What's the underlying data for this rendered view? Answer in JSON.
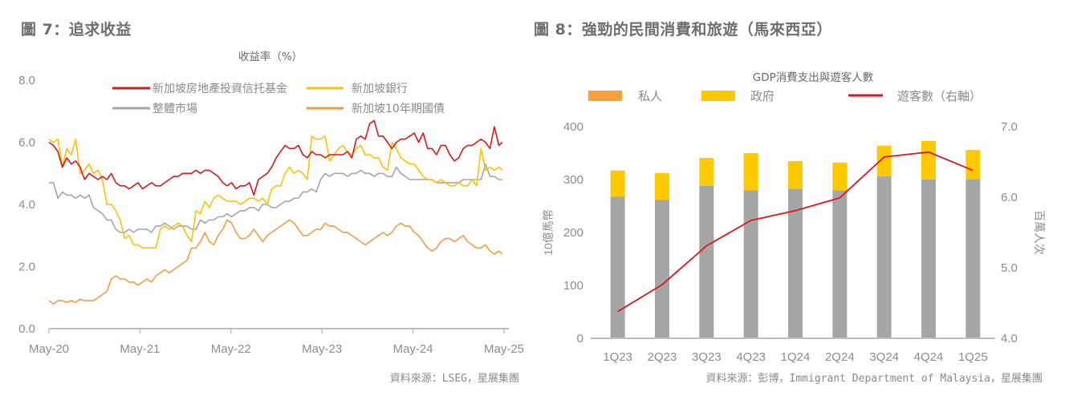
{
  "figures": [
    {
      "title": "圖 7：追求收益",
      "source": "資料來源：LSEG，星展集團"
    },
    {
      "title": "圖 8：強勁的民間消費和旅遊（馬來西亞）",
      "source": "資料來源：彭博，Immigrant Department of Malaysia，星展集團"
    }
  ],
  "chart_data": [
    {
      "type": "line",
      "title": "收益率（%）",
      "xlabel": "",
      "ylabel": "",
      "ylim": [
        0,
        8
      ],
      "yticks": [
        "0.0",
        "2.0",
        "4.0",
        "6.0",
        "8.0"
      ],
      "xticks": [
        "May-20",
        "May-21",
        "May-22",
        "May-23",
        "May-24",
        "May-25"
      ],
      "xlim": [
        2020.33,
        2025.42
      ],
      "grid": false,
      "legend": "top-center",
      "series": [
        {
          "name": "新加坡房地產投資信托基金",
          "color": "#d7191c",
          "x": [
            2020.33,
            2020.38,
            2020.43,
            2020.48,
            2020.53,
            2020.58,
            2020.63,
            2020.68,
            2020.73,
            2020.78,
            2020.83,
            2020.88,
            2020.93,
            2020.98,
            2021.03,
            2021.08,
            2021.13,
            2021.18,
            2021.23,
            2021.28,
            2021.33,
            2021.38,
            2021.43,
            2021.48,
            2021.53,
            2021.58,
            2021.63,
            2021.68,
            2021.73,
            2021.78,
            2021.83,
            2021.88,
            2021.93,
            2021.98,
            2022.03,
            2022.08,
            2022.13,
            2022.18,
            2022.23,
            2022.28,
            2022.33,
            2022.38,
            2022.43,
            2022.48,
            2022.53,
            2022.58,
            2022.63,
            2022.68,
            2022.73,
            2022.78,
            2022.83,
            2022.88,
            2022.93,
            2022.98,
            2023.03,
            2023.08,
            2023.13,
            2023.18,
            2023.23,
            2023.28,
            2023.33,
            2023.38,
            2023.43,
            2023.48,
            2023.53,
            2023.58,
            2023.63,
            2023.68,
            2023.73,
            2023.78,
            2023.83,
            2023.88,
            2023.93,
            2023.98,
            2024.03,
            2024.08,
            2024.13,
            2024.18,
            2024.23,
            2024.28,
            2024.33,
            2024.38,
            2024.43,
            2024.48,
            2024.53,
            2024.58,
            2024.63,
            2024.68,
            2024.73,
            2024.78,
            2024.83,
            2024.88,
            2024.93,
            2024.98,
            2025.03,
            2025.08,
            2025.13,
            2025.18,
            2025.23,
            2025.28,
            2025.33,
            2025.38,
            2025.42
          ],
          "values": [
            6.0,
            5.9,
            5.7,
            5.2,
            5.5,
            5.3,
            5.4,
            5.2,
            4.8,
            5.0,
            4.9,
            4.8,
            4.9,
            4.8,
            5.0,
            4.7,
            4.6,
            4.6,
            4.5,
            4.6,
            4.7,
            4.5,
            4.6,
            4.7,
            4.6,
            4.6,
            4.7,
            4.8,
            4.9,
            4.9,
            5.0,
            5.0,
            5.0,
            5.1,
            5.0,
            5.1,
            5.1,
            5.0,
            4.9,
            4.7,
            4.6,
            4.7,
            4.5,
            4.6,
            4.6,
            4.7,
            4.3,
            4.8,
            4.9,
            5.0,
            5.2,
            5.5,
            5.7,
            5.9,
            5.8,
            5.8,
            5.9,
            5.6,
            5.5,
            5.7,
            5.6,
            5.6,
            5.5,
            5.6,
            5.6,
            5.6,
            5.6,
            5.7,
            5.5,
            6.1,
            6.2,
            6.1,
            6.6,
            6.7,
            6.2,
            6.2,
            6.0,
            5.8,
            6.0,
            6.1,
            6.1,
            6.2,
            6.3,
            6.0,
            6.3,
            5.8,
            5.8,
            5.6,
            5.9,
            5.9,
            5.6,
            5.4,
            5.5,
            5.8,
            5.9,
            5.9,
            6.0,
            6.1,
            6.0,
            5.8,
            6.5,
            5.9,
            6.0
          ]
        },
        {
          "name": "新加坡銀行",
          "color": "#fcc00a",
          "x": [
            2020.33,
            2020.38,
            2020.43,
            2020.48,
            2020.53,
            2020.58,
            2020.63,
            2020.68,
            2020.73,
            2020.78,
            2020.83,
            2020.88,
            2020.93,
            2020.98,
            2021.03,
            2021.08,
            2021.13,
            2021.18,
            2021.23,
            2021.28,
            2021.33,
            2021.38,
            2021.43,
            2021.48,
            2021.53,
            2021.58,
            2021.63,
            2021.68,
            2021.73,
            2021.78,
            2021.83,
            2021.88,
            2021.93,
            2021.98,
            2022.03,
            2022.08,
            2022.13,
            2022.18,
            2022.23,
            2022.28,
            2022.33,
            2022.38,
            2022.43,
            2022.48,
            2022.53,
            2022.58,
            2022.63,
            2022.68,
            2022.73,
            2022.78,
            2022.83,
            2022.88,
            2022.93,
            2022.98,
            2023.03,
            2023.08,
            2023.13,
            2023.18,
            2023.23,
            2023.28,
            2023.33,
            2023.38,
            2023.43,
            2023.48,
            2023.53,
            2023.58,
            2023.63,
            2023.68,
            2023.73,
            2023.78,
            2023.83,
            2023.88,
            2023.93,
            2023.98,
            2024.03,
            2024.08,
            2024.13,
            2024.18,
            2024.23,
            2024.28,
            2024.33,
            2024.38,
            2024.43,
            2024.48,
            2024.53,
            2024.58,
            2024.63,
            2024.68,
            2024.73,
            2024.78,
            2024.83,
            2024.88,
            2024.93,
            2024.98,
            2025.03,
            2025.08,
            2025.13,
            2025.18,
            2025.23,
            2025.28,
            2025.33,
            2025.38,
            2025.42
          ],
          "values": [
            6.1,
            6.0,
            6.1,
            5.2,
            5.8,
            5.6,
            6.1,
            5.0,
            5.1,
            5.3,
            5.0,
            5.1,
            4.8,
            4.0,
            4.0,
            3.8,
            3.5,
            2.9,
            3.0,
            2.7,
            2.7,
            2.6,
            2.6,
            2.6,
            2.6,
            3.2,
            3.3,
            3.2,
            3.3,
            3.4,
            3.3,
            3.0,
            2.8,
            3.8,
            3.7,
            4.1,
            3.9,
            4.2,
            4.3,
            4.2,
            4.1,
            4.1,
            4.1,
            4.0,
            4.1,
            4.2,
            4.2,
            4.1,
            4.2,
            4.0,
            4.5,
            4.6,
            4.6,
            5.0,
            5.2,
            5.0,
            5.1,
            5.0,
            4.8,
            6.2,
            6.1,
            6.1,
            6.2,
            5.4,
            5.6,
            5.8,
            5.9,
            5.7,
            5.6,
            5.8,
            5.9,
            5.6,
            5.6,
            5.5,
            5.5,
            5.2,
            5.1,
            6.0,
            5.8,
            5.5,
            5.4,
            5.3,
            5.3,
            5.1,
            4.9,
            4.8,
            4.8,
            4.7,
            4.8,
            4.7,
            4.6,
            4.6,
            4.7,
            4.6,
            4.6,
            4.8,
            4.6,
            5.8,
            5.1,
            5.2,
            5.1,
            5.2,
            5.1
          ]
        },
        {
          "name": "整體市場",
          "color": "#a5a5a5",
          "x": [
            2020.33,
            2020.38,
            2020.43,
            2020.48,
            2020.53,
            2020.58,
            2020.63,
            2020.68,
            2020.73,
            2020.78,
            2020.83,
            2020.88,
            2020.93,
            2020.98,
            2021.03,
            2021.08,
            2021.13,
            2021.18,
            2021.23,
            2021.28,
            2021.33,
            2021.38,
            2021.43,
            2021.48,
            2021.53,
            2021.58,
            2021.63,
            2021.68,
            2021.73,
            2021.78,
            2021.83,
            2021.88,
            2021.93,
            2021.98,
            2022.03,
            2022.08,
            2022.13,
            2022.18,
            2022.23,
            2022.28,
            2022.33,
            2022.38,
            2022.43,
            2022.48,
            2022.53,
            2022.58,
            2022.63,
            2022.68,
            2022.73,
            2022.78,
            2022.83,
            2022.88,
            2022.93,
            2022.98,
            2023.03,
            2023.08,
            2023.13,
            2023.18,
            2023.23,
            2023.28,
            2023.33,
            2023.38,
            2023.43,
            2023.48,
            2023.53,
            2023.58,
            2023.63,
            2023.68,
            2023.73,
            2023.78,
            2023.83,
            2023.88,
            2023.93,
            2023.98,
            2024.03,
            2024.08,
            2024.13,
            2024.18,
            2024.23,
            2024.28,
            2024.33,
            2024.38,
            2024.43,
            2024.48,
            2024.53,
            2024.58,
            2024.63,
            2024.68,
            2024.73,
            2024.78,
            2024.83,
            2024.88,
            2024.93,
            2024.98,
            2025.03,
            2025.08,
            2025.13,
            2025.18,
            2025.23,
            2025.28,
            2025.33,
            2025.38,
            2025.42
          ],
          "values": [
            4.7,
            4.7,
            4.2,
            4.4,
            4.3,
            4.3,
            4.2,
            4.3,
            4.2,
            4.3,
            3.9,
            3.8,
            3.7,
            3.5,
            3.5,
            3.2,
            3.1,
            3.1,
            3.2,
            3.1,
            3.2,
            3.2,
            3.2,
            3.1,
            3.3,
            3.3,
            3.4,
            3.3,
            3.2,
            3.3,
            3.3,
            3.3,
            3.2,
            3.2,
            3.5,
            3.4,
            3.5,
            3.5,
            3.6,
            3.6,
            3.7,
            3.6,
            3.7,
            3.8,
            3.8,
            3.9,
            3.9,
            3.8,
            4.0,
            4.0,
            3.9,
            3.9,
            4.0,
            4.1,
            4.1,
            4.2,
            4.2,
            4.4,
            4.4,
            4.5,
            4.4,
            4.8,
            5.0,
            4.9,
            5.0,
            5.0,
            5.0,
            4.9,
            5.0,
            5.0,
            5.1,
            5.0,
            5.0,
            4.9,
            5.0,
            5.0,
            4.9,
            4.9,
            5.2,
            5.0,
            4.9,
            4.8,
            4.8,
            4.8,
            4.8,
            4.8,
            4.8,
            4.7,
            4.7,
            4.7,
            4.7,
            4.7,
            4.7,
            4.8,
            4.8,
            4.8,
            4.8,
            4.8,
            5.3,
            4.9,
            4.9,
            4.8,
            4.8
          ]
        },
        {
          "name": "新加坡10年期國債",
          "color": "#f19c41",
          "x": [
            2020.33,
            2020.38,
            2020.43,
            2020.48,
            2020.53,
            2020.58,
            2020.63,
            2020.68,
            2020.73,
            2020.78,
            2020.83,
            2020.88,
            2020.93,
            2020.98,
            2021.03,
            2021.08,
            2021.13,
            2021.18,
            2021.23,
            2021.28,
            2021.33,
            2021.38,
            2021.43,
            2021.48,
            2021.53,
            2021.58,
            2021.63,
            2021.68,
            2021.73,
            2021.78,
            2021.83,
            2021.88,
            2021.93,
            2021.98,
            2022.03,
            2022.08,
            2022.13,
            2022.18,
            2022.23,
            2022.28,
            2022.33,
            2022.38,
            2022.43,
            2022.48,
            2022.53,
            2022.58,
            2022.63,
            2022.68,
            2022.73,
            2022.78,
            2022.83,
            2022.88,
            2022.93,
            2022.98,
            2023.03,
            2023.08,
            2023.13,
            2023.18,
            2023.23,
            2023.28,
            2023.33,
            2023.38,
            2023.43,
            2023.48,
            2023.53,
            2023.58,
            2023.63,
            2023.68,
            2023.73,
            2023.78,
            2023.83,
            2023.88,
            2023.93,
            2023.98,
            2024.03,
            2024.08,
            2024.13,
            2024.18,
            2024.23,
            2024.28,
            2024.33,
            2024.38,
            2024.43,
            2024.48,
            2024.53,
            2024.58,
            2024.63,
            2024.68,
            2024.73,
            2024.78,
            2024.83,
            2024.88,
            2024.93,
            2024.98,
            2025.03,
            2025.08,
            2025.13,
            2025.18,
            2025.23,
            2025.28,
            2025.33,
            2025.38,
            2025.42
          ],
          "values": [
            0.9,
            0.8,
            0.9,
            0.9,
            0.85,
            0.9,
            0.85,
            0.95,
            0.9,
            0.9,
            0.9,
            1.0,
            1.1,
            1.2,
            1.6,
            1.7,
            1.6,
            1.6,
            1.5,
            1.5,
            1.4,
            1.5,
            1.6,
            1.5,
            1.7,
            1.8,
            1.9,
            1.8,
            1.9,
            2.0,
            2.1,
            2.2,
            2.6,
            2.6,
            2.8,
            3.1,
            2.8,
            2.7,
            3.0,
            3.2,
            3.5,
            3.4,
            3.1,
            2.9,
            2.9,
            3.0,
            3.2,
            3.0,
            2.8,
            3.0,
            3.1,
            3.2,
            3.3,
            3.4,
            3.5,
            3.4,
            3.2,
            3.0,
            3.0,
            3.1,
            3.2,
            3.2,
            3.4,
            3.3,
            3.3,
            3.2,
            3.1,
            3.1,
            3.0,
            2.9,
            2.8,
            2.7,
            2.8,
            2.9,
            3.0,
            3.1,
            3.0,
            3.1,
            3.3,
            3.4,
            3.3,
            3.3,
            3.1,
            3.0,
            2.8,
            2.6,
            2.5,
            2.6,
            2.8,
            2.9,
            2.9,
            2.8,
            2.9,
            3.0,
            2.8,
            2.7,
            2.6,
            2.6,
            2.7,
            2.5,
            2.4,
            2.5,
            2.4
          ]
        }
      ]
    },
    {
      "type": "bar",
      "stacked": true,
      "title": "GDP消費支出與遊客人數",
      "xlabel": "",
      "ylabel": "10億馬幣",
      "ylabel_right": "百萬人次",
      "ylim": [
        0,
        400
      ],
      "ylim_right": [
        4.0,
        7.0
      ],
      "yticks": [
        "0",
        "100",
        "200",
        "300",
        "400"
      ],
      "yticks_right": [
        "4.0",
        "5.0",
        "6.0",
        "7.0"
      ],
      "categories": [
        "1Q23",
        "2Q23",
        "3Q23",
        "4Q23",
        "1Q24",
        "2Q24",
        "3Q24",
        "4Q24",
        "1Q25"
      ],
      "grid": false,
      "legend": "top",
      "series": [
        {
          "name": "私人",
          "color": "#a6a6a6",
          "legend_color": "#f8a139",
          "values": [
            268,
            262,
            288,
            280,
            283,
            280,
            306,
            300,
            301
          ]
        },
        {
          "name": "政府",
          "color": "#ffc902",
          "values": [
            49,
            50,
            53,
            70,
            52,
            52,
            58,
            73,
            55
          ]
        },
        {
          "name": "遊客數（右軸）",
          "type": "line",
          "axis": "right",
          "color": "#e0141e",
          "values": [
            4.38,
            4.76,
            5.31,
            5.67,
            5.81,
            5.99,
            6.57,
            6.64,
            6.38
          ]
        }
      ]
    }
  ]
}
